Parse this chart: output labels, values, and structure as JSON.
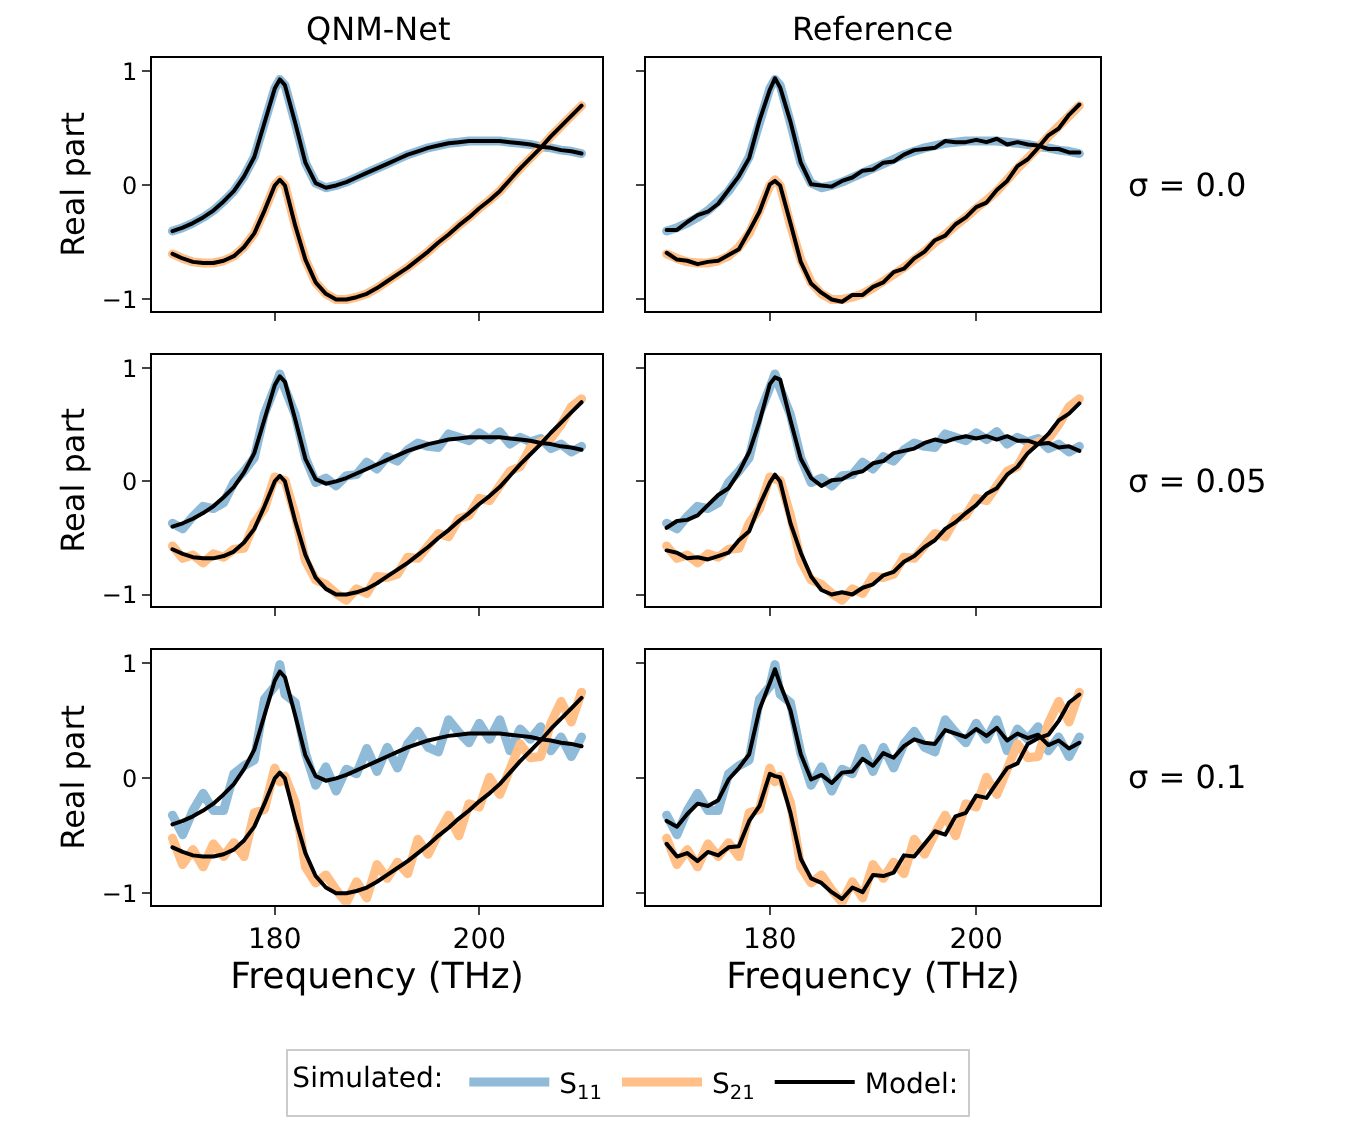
{
  "chart_data": [
    {
      "type": "line",
      "title": "QNM-Net",
      "ylabel": "Real part",
      "legend": "bottom",
      "legend_title": "Simulated:",
      "tick_labels": "y",
      "xlim": [
        168,
        212
      ],
      "ylim": [
        -1.1,
        1.12
      ],
      "xticks": [
        180,
        200
      ],
      "yticks": [
        -1,
        0,
        1
      ],
      "grid": false,
      "x": [
        170,
        171,
        172,
        173,
        174,
        175,
        176,
        177,
        178,
        179,
        180,
        180.5,
        181,
        182,
        183,
        184,
        185,
        186,
        187,
        188,
        189,
        190,
        191,
        192,
        193,
        194,
        195,
        196,
        197,
        198,
        199,
        200,
        201,
        202,
        203,
        204,
        205,
        206,
        207,
        208,
        209,
        210
      ],
      "series": [
        {
          "name": "S$_{11}$",
          "color": "#8fbbd9",
          "values": [
            -0.4,
            -0.37,
            -0.33,
            -0.28,
            -0.22,
            -0.14,
            -0.05,
            0.08,
            0.25,
            0.55,
            0.85,
            0.93,
            0.88,
            0.55,
            0.2,
            0.02,
            -0.02,
            0.0,
            0.03,
            0.07,
            0.11,
            0.15,
            0.19,
            0.23,
            0.27,
            0.3,
            0.33,
            0.35,
            0.37,
            0.38,
            0.39,
            0.39,
            0.39,
            0.39,
            0.38,
            0.37,
            0.36,
            0.34,
            0.33,
            0.31,
            0.3,
            0.28
          ]
        },
        {
          "name": "S$_{21}$",
          "color": "#ffbf86",
          "values": [
            -0.6,
            -0.64,
            -0.67,
            -0.68,
            -0.68,
            -0.66,
            -0.62,
            -0.54,
            -0.42,
            -0.22,
            0.0,
            0.05,
            0.0,
            -0.35,
            -0.65,
            -0.85,
            -0.95,
            -1.0,
            -1.0,
            -0.98,
            -0.95,
            -0.9,
            -0.84,
            -0.78,
            -0.72,
            -0.65,
            -0.58,
            -0.5,
            -0.43,
            -0.35,
            -0.28,
            -0.2,
            -0.13,
            -0.05,
            0.05,
            0.15,
            0.24,
            0.33,
            0.43,
            0.52,
            0.61,
            0.7
          ]
        },
        {
          "name": "Model:",
          "color": "#000000",
          "values": [
            -0.4,
            -0.37,
            -0.33,
            -0.28,
            -0.22,
            -0.14,
            -0.05,
            0.08,
            0.25,
            0.55,
            0.85,
            0.93,
            0.88,
            0.55,
            0.2,
            0.02,
            -0.02,
            0.0,
            0.03,
            0.07,
            0.11,
            0.15,
            0.19,
            0.23,
            0.27,
            0.3,
            0.33,
            0.35,
            0.37,
            0.38,
            0.39,
            0.39,
            0.39,
            0.39,
            0.38,
            0.37,
            0.36,
            0.34,
            0.33,
            0.31,
            0.3,
            0.28
          ]
        },
        {
          "color": "#000000",
          "values": [
            -0.6,
            -0.64,
            -0.67,
            -0.68,
            -0.68,
            -0.66,
            -0.62,
            -0.54,
            -0.42,
            -0.22,
            0.0,
            0.05,
            0.0,
            -0.35,
            -0.65,
            -0.85,
            -0.95,
            -1.0,
            -1.0,
            -0.98,
            -0.95,
            -0.9,
            -0.84,
            -0.78,
            -0.72,
            -0.65,
            -0.58,
            -0.5,
            -0.43,
            -0.35,
            -0.28,
            -0.2,
            -0.13,
            -0.05,
            0.05,
            0.15,
            0.24,
            0.33,
            0.43,
            0.52,
            0.61,
            0.7
          ]
        }
      ]
    },
    {
      "type": "line",
      "title": "Reference",
      "annotations": [
        "σ = 0.0"
      ],
      "tick_labels": false,
      "xlim": [
        168,
        212
      ],
      "ylim": [
        -1.1,
        1.12
      ],
      "xticks": [
        180,
        200
      ],
      "yticks": [
        -1,
        0,
        1
      ],
      "grid": false,
      "x": [
        170,
        171,
        172,
        173,
        174,
        175,
        176,
        177,
        178,
        179,
        180,
        180.5,
        181,
        182,
        183,
        184,
        185,
        186,
        187,
        188,
        189,
        190,
        191,
        192,
        193,
        194,
        195,
        196,
        197,
        198,
        199,
        200,
        201,
        202,
        203,
        204,
        205,
        206,
        207,
        208,
        209,
        210
      ],
      "series": [
        {
          "name": "S$_{11}$",
          "color": "#8fbbd9",
          "values": [
            -0.4,
            -0.37,
            -0.33,
            -0.28,
            -0.22,
            -0.14,
            -0.05,
            0.08,
            0.25,
            0.55,
            0.85,
            0.93,
            0.88,
            0.55,
            0.2,
            0.02,
            -0.02,
            0.0,
            0.03,
            0.07,
            0.11,
            0.15,
            0.19,
            0.23,
            0.27,
            0.3,
            0.33,
            0.35,
            0.37,
            0.38,
            0.39,
            0.39,
            0.39,
            0.39,
            0.38,
            0.37,
            0.36,
            0.34,
            0.33,
            0.31,
            0.3,
            0.28
          ]
        },
        {
          "name": "S$_{21}$",
          "color": "#ffbf86",
          "values": [
            -0.6,
            -0.64,
            -0.67,
            -0.68,
            -0.68,
            -0.66,
            -0.62,
            -0.54,
            -0.42,
            -0.22,
            0.0,
            0.05,
            0.0,
            -0.35,
            -0.65,
            -0.85,
            -0.95,
            -1.0,
            -1.0,
            -0.98,
            -0.95,
            -0.9,
            -0.84,
            -0.78,
            -0.72,
            -0.65,
            -0.58,
            -0.5,
            -0.43,
            -0.35,
            -0.28,
            -0.2,
            -0.13,
            -0.05,
            0.05,
            0.15,
            0.24,
            0.33,
            0.43,
            0.52,
            0.61,
            0.7
          ]
        },
        {
          "name": "Model:",
          "color": "#000000",
          "values": [
            -0.39,
            -0.39,
            -0.32,
            -0.26,
            -0.23,
            -0.16,
            -0.04,
            0.08,
            0.24,
            0.57,
            0.84,
            0.94,
            0.86,
            0.56,
            0.2,
            0.01,
            0.0,
            -0.01,
            0.04,
            0.07,
            0.13,
            0.14,
            0.2,
            0.21,
            0.27,
            0.31,
            0.32,
            0.33,
            0.39,
            0.38,
            0.38,
            0.4,
            0.38,
            0.41,
            0.36,
            0.38,
            0.36,
            0.35,
            0.32,
            0.32,
            0.29,
            0.29
          ]
        },
        {
          "color": "#000000",
          "values": [
            -0.59,
            -0.65,
            -0.66,
            -0.69,
            -0.67,
            -0.66,
            -0.61,
            -0.56,
            -0.4,
            -0.23,
            0.01,
            0.04,
            0.0,
            -0.33,
            -0.67,
            -0.86,
            -0.94,
            -1.0,
            -1.02,
            -0.96,
            -0.96,
            -0.89,
            -0.85,
            -0.76,
            -0.73,
            -0.64,
            -0.58,
            -0.48,
            -0.44,
            -0.34,
            -0.28,
            -0.19,
            -0.15,
            -0.04,
            0.04,
            0.17,
            0.23,
            0.33,
            0.44,
            0.5,
            0.62,
            0.71
          ]
        }
      ]
    },
    {
      "type": "line",
      "ylabel": "Real part",
      "tick_labels": "y",
      "xlim": [
        168,
        212
      ],
      "ylim": [
        -1.1,
        1.12
      ],
      "xticks": [
        180,
        200
      ],
      "yticks": [
        -1,
        0,
        1
      ],
      "grid": false,
      "x": [
        170,
        171,
        172,
        173,
        174,
        175,
        176,
        177,
        178,
        179,
        180,
        180.5,
        181,
        182,
        183,
        184,
        185,
        186,
        187,
        188,
        189,
        190,
        191,
        192,
        193,
        194,
        195,
        196,
        197,
        198,
        199,
        200,
        201,
        202,
        203,
        204,
        205,
        206,
        207,
        208,
        209,
        210
      ],
      "series": [
        {
          "name": "S$_{11}$",
          "color": "#8fbbd9",
          "values": [
            -0.37,
            -0.42,
            -0.31,
            -0.22,
            -0.24,
            -0.19,
            -0.01,
            0.09,
            0.21,
            0.6,
            0.83,
            0.95,
            0.82,
            0.59,
            0.21,
            -0.01,
            0.03,
            -0.04,
            0.05,
            0.06,
            0.17,
            0.11,
            0.22,
            0.18,
            0.28,
            0.34,
            0.31,
            0.3,
            0.42,
            0.39,
            0.36,
            0.43,
            0.37,
            0.44,
            0.33,
            0.39,
            0.35,
            0.38,
            0.29,
            0.33,
            0.26,
            0.31
          ]
        },
        {
          "name": "S$_{21}$",
          "color": "#ffbf86",
          "values": [
            -0.57,
            -0.68,
            -0.65,
            -0.72,
            -0.64,
            -0.67,
            -0.6,
            -0.59,
            -0.37,
            -0.24,
            0.04,
            0.02,
            0.01,
            -0.3,
            -0.7,
            -0.87,
            -0.91,
            -0.99,
            -1.05,
            -0.95,
            -0.99,
            -0.84,
            -0.85,
            -0.82,
            -0.67,
            -0.68,
            -0.57,
            -0.46,
            -0.49,
            -0.33,
            -0.3,
            -0.15,
            -0.17,
            -0.04,
            0.09,
            0.13,
            0.3,
            0.35,
            0.38,
            0.5,
            0.66,
            0.73
          ]
        },
        {
          "name": "Model:",
          "color": "#000000",
          "values": [
            -0.4,
            -0.37,
            -0.33,
            -0.28,
            -0.22,
            -0.14,
            -0.05,
            0.08,
            0.25,
            0.55,
            0.85,
            0.93,
            0.88,
            0.55,
            0.2,
            0.02,
            -0.02,
            0.0,
            0.03,
            0.07,
            0.11,
            0.15,
            0.19,
            0.23,
            0.27,
            0.3,
            0.33,
            0.35,
            0.37,
            0.38,
            0.39,
            0.39,
            0.39,
            0.39,
            0.38,
            0.37,
            0.36,
            0.34,
            0.33,
            0.31,
            0.3,
            0.28
          ]
        },
        {
          "color": "#000000",
          "values": [
            -0.6,
            -0.64,
            -0.67,
            -0.68,
            -0.68,
            -0.66,
            -0.62,
            -0.54,
            -0.42,
            -0.22,
            0.0,
            0.05,
            0.0,
            -0.35,
            -0.65,
            -0.85,
            -0.95,
            -1.0,
            -1.0,
            -0.98,
            -0.95,
            -0.9,
            -0.84,
            -0.78,
            -0.72,
            -0.65,
            -0.58,
            -0.5,
            -0.43,
            -0.35,
            -0.28,
            -0.2,
            -0.13,
            -0.05,
            0.05,
            0.15,
            0.24,
            0.33,
            0.43,
            0.52,
            0.61,
            0.7
          ]
        }
      ]
    },
    {
      "type": "line",
      "annotations": [
        "σ = 0.05"
      ],
      "tick_labels": false,
      "xlim": [
        168,
        212
      ],
      "ylim": [
        -1.1,
        1.12
      ],
      "xticks": [
        180,
        200
      ],
      "yticks": [
        -1,
        0,
        1
      ],
      "grid": false,
      "x": [
        170,
        171,
        172,
        173,
        174,
        175,
        176,
        177,
        178,
        179,
        180,
        180.5,
        181,
        182,
        183,
        184,
        185,
        186,
        187,
        188,
        189,
        190,
        191,
        192,
        193,
        194,
        195,
        196,
        197,
        198,
        199,
        200,
        201,
        202,
        203,
        204,
        205,
        206,
        207,
        208,
        209,
        210
      ],
      "series": [
        {
          "name": "S$_{11}$",
          "color": "#8fbbd9",
          "values": [
            -0.37,
            -0.42,
            -0.31,
            -0.22,
            -0.24,
            -0.19,
            -0.01,
            0.09,
            0.21,
            0.6,
            0.83,
            0.95,
            0.82,
            0.59,
            0.21,
            -0.01,
            0.03,
            -0.04,
            0.05,
            0.06,
            0.17,
            0.11,
            0.22,
            0.18,
            0.28,
            0.34,
            0.31,
            0.3,
            0.42,
            0.39,
            0.36,
            0.43,
            0.37,
            0.44,
            0.33,
            0.39,
            0.35,
            0.38,
            0.29,
            0.33,
            0.26,
            0.31
          ]
        },
        {
          "name": "S$_{21}$",
          "color": "#ffbf86",
          "values": [
            -0.57,
            -0.68,
            -0.65,
            -0.72,
            -0.64,
            -0.67,
            -0.6,
            -0.59,
            -0.37,
            -0.24,
            0.04,
            0.02,
            0.01,
            -0.3,
            -0.7,
            -0.87,
            -0.91,
            -0.99,
            -1.05,
            -0.95,
            -0.99,
            -0.84,
            -0.85,
            -0.82,
            -0.67,
            -0.68,
            -0.57,
            -0.46,
            -0.49,
            -0.33,
            -0.3,
            -0.15,
            -0.17,
            -0.04,
            0.09,
            0.13,
            0.3,
            0.35,
            0.38,
            0.5,
            0.66,
            0.73
          ]
        },
        {
          "name": "Model:",
          "color": "#000000",
          "values": [
            -0.41,
            -0.35,
            -0.34,
            -0.3,
            -0.21,
            -0.12,
            -0.06,
            0.08,
            0.26,
            0.53,
            0.86,
            0.92,
            0.9,
            0.54,
            0.2,
            0.03,
            -0.04,
            0.01,
            0.02,
            0.07,
            0.09,
            0.16,
            0.18,
            0.25,
            0.27,
            0.29,
            0.34,
            0.37,
            0.35,
            0.38,
            0.4,
            0.38,
            0.4,
            0.37,
            0.4,
            0.36,
            0.36,
            0.33,
            0.34,
            0.3,
            0.31,
            0.27
          ]
        },
        {
          "color": "#000000",
          "values": [
            -0.61,
            -0.63,
            -0.68,
            -0.67,
            -0.69,
            -0.66,
            -0.63,
            -0.52,
            -0.44,
            -0.21,
            -0.01,
            0.06,
            0.0,
            -0.37,
            -0.63,
            -0.84,
            -0.96,
            -1.0,
            -0.98,
            -1.0,
            -0.94,
            -0.91,
            -0.83,
            -0.8,
            -0.71,
            -0.66,
            -0.58,
            -0.52,
            -0.42,
            -0.36,
            -0.28,
            -0.21,
            -0.11,
            -0.06,
            0.06,
            0.13,
            0.25,
            0.33,
            0.42,
            0.54,
            0.6,
            0.69
          ]
        }
      ]
    },
    {
      "type": "line",
      "ylabel": "Real part",
      "xlabel": "Frequency (THz)",
      "xlim": [
        168,
        212
      ],
      "ylim": [
        -1.1,
        1.12
      ],
      "xticks": [
        180,
        200
      ],
      "yticks": [
        -1,
        0,
        1
      ],
      "grid": false,
      "x": [
        170,
        171,
        172,
        173,
        174,
        175,
        176,
        177,
        178,
        179,
        180,
        180.5,
        181,
        182,
        183,
        184,
        185,
        186,
        187,
        188,
        189,
        190,
        191,
        192,
        193,
        194,
        195,
        196,
        197,
        198,
        199,
        200,
        201,
        202,
        203,
        204,
        205,
        206,
        207,
        208,
        209,
        210
      ],
      "series": [
        {
          "name": "S$_{11}$",
          "color": "#8fbbd9",
          "values": [
            -0.32,
            -0.49,
            -0.28,
            -0.13,
            -0.28,
            -0.28,
            0.04,
            0.11,
            0.16,
            0.69,
            0.8,
            0.99,
            0.73,
            0.66,
            0.22,
            -0.06,
            0.1,
            -0.11,
            0.08,
            0.04,
            0.26,
            0.06,
            0.27,
            0.09,
            0.3,
            0.41,
            0.27,
            0.23,
            0.51,
            0.4,
            0.31,
            0.48,
            0.34,
            0.51,
            0.24,
            0.43,
            0.34,
            0.45,
            0.24,
            0.36,
            0.19,
            0.36
          ]
        },
        {
          "name": "S$_{21}$",
          "color": "#ffbf86",
          "values": [
            -0.52,
            -0.75,
            -0.62,
            -0.77,
            -0.57,
            -0.68,
            -0.56,
            -0.68,
            -0.3,
            -0.27,
            0.09,
            -0.03,
            0.02,
            -0.21,
            -0.77,
            -0.91,
            -0.84,
            -0.97,
            -1.08,
            -0.9,
            -1.04,
            -0.75,
            -0.87,
            -0.73,
            -0.83,
            -0.53,
            -0.66,
            -0.48,
            -0.32,
            -0.5,
            -0.22,
            -0.25,
            0.01,
            -0.14,
            0.08,
            0.3,
            0.18,
            0.19,
            0.48,
            0.67,
            0.49,
            0.75
          ]
        },
        {
          "name": "Model:",
          "color": "#000000",
          "values": [
            -0.4,
            -0.37,
            -0.33,
            -0.28,
            -0.22,
            -0.14,
            -0.05,
            0.08,
            0.25,
            0.55,
            0.85,
            0.93,
            0.88,
            0.55,
            0.2,
            0.02,
            -0.02,
            0.0,
            0.03,
            0.07,
            0.11,
            0.15,
            0.19,
            0.23,
            0.27,
            0.3,
            0.33,
            0.35,
            0.37,
            0.38,
            0.39,
            0.39,
            0.39,
            0.39,
            0.38,
            0.37,
            0.36,
            0.34,
            0.33,
            0.31,
            0.3,
            0.28
          ]
        },
        {
          "color": "#000000",
          "values": [
            -0.6,
            -0.64,
            -0.67,
            -0.68,
            -0.68,
            -0.66,
            -0.62,
            -0.54,
            -0.42,
            -0.22,
            0.0,
            0.05,
            0.0,
            -0.35,
            -0.65,
            -0.85,
            -0.95,
            -1.0,
            -1.0,
            -0.98,
            -0.95,
            -0.9,
            -0.84,
            -0.78,
            -0.72,
            -0.65,
            -0.58,
            -0.5,
            -0.43,
            -0.35,
            -0.28,
            -0.2,
            -0.13,
            -0.05,
            0.05,
            0.15,
            0.24,
            0.33,
            0.43,
            0.52,
            0.61,
            0.7
          ]
        }
      ]
    },
    {
      "type": "line",
      "xlabel": "Frequency (THz)",
      "annotations": [
        "σ = 0.1"
      ],
      "tick_labels": "x",
      "xlim": [
        168,
        212
      ],
      "ylim": [
        -1.1,
        1.12
      ],
      "xticks": [
        180,
        200
      ],
      "yticks": [
        -1,
        0,
        1
      ],
      "grid": false,
      "x": [
        170,
        171,
        172,
        173,
        174,
        175,
        176,
        177,
        178,
        179,
        180,
        180.5,
        181,
        182,
        183,
        184,
        185,
        186,
        187,
        188,
        189,
        190,
        191,
        192,
        193,
        194,
        195,
        196,
        197,
        198,
        199,
        200,
        201,
        202,
        203,
        204,
        205,
        206,
        207,
        208,
        209,
        210
      ],
      "series": [
        {
          "name": "S$_{11}$",
          "color": "#8fbbd9",
          "values": [
            -0.32,
            -0.49,
            -0.28,
            -0.13,
            -0.28,
            -0.28,
            0.04,
            0.11,
            0.16,
            0.69,
            0.8,
            0.99,
            0.73,
            0.66,
            0.22,
            -0.06,
            0.1,
            -0.11,
            0.08,
            0.04,
            0.26,
            0.06,
            0.27,
            0.09,
            0.3,
            0.41,
            0.27,
            0.23,
            0.51,
            0.4,
            0.31,
            0.48,
            0.34,
            0.51,
            0.24,
            0.43,
            0.34,
            0.45,
            0.24,
            0.36,
            0.19,
            0.36
          ]
        },
        {
          "name": "S$_{21}$",
          "color": "#ffbf86",
          "values": [
            -0.52,
            -0.75,
            -0.62,
            -0.77,
            -0.57,
            -0.68,
            -0.56,
            -0.68,
            -0.3,
            -0.27,
            0.09,
            -0.03,
            0.02,
            -0.21,
            -0.77,
            -0.91,
            -0.84,
            -0.97,
            -1.08,
            -0.9,
            -1.04,
            -0.75,
            -0.87,
            -0.73,
            -0.83,
            -0.53,
            -0.66,
            -0.48,
            -0.32,
            -0.5,
            -0.22,
            -0.25,
            0.01,
            -0.14,
            0.08,
            0.3,
            0.18,
            0.19,
            0.48,
            0.67,
            0.49,
            0.75
          ]
        },
        {
          "name": "Model:",
          "color": "#000000",
          "values": [
            -0.37,
            -0.42,
            -0.31,
            -0.22,
            -0.24,
            -0.19,
            -0.01,
            0.09,
            0.21,
            0.6,
            0.83,
            0.95,
            0.82,
            0.59,
            0.21,
            -0.01,
            0.03,
            -0.04,
            0.05,
            0.06,
            0.17,
            0.11,
            0.22,
            0.18,
            0.28,
            0.34,
            0.31,
            0.3,
            0.42,
            0.39,
            0.36,
            0.43,
            0.37,
            0.44,
            0.33,
            0.39,
            0.35,
            0.38,
            0.29,
            0.33,
            0.26,
            0.31
          ]
        },
        {
          "color": "#000000",
          "values": [
            -0.57,
            -0.68,
            -0.65,
            -0.72,
            -0.64,
            -0.67,
            -0.6,
            -0.59,
            -0.37,
            -0.24,
            0.04,
            0.02,
            0.01,
            -0.3,
            -0.7,
            -0.87,
            -0.91,
            -0.99,
            -1.05,
            -0.95,
            -0.99,
            -0.84,
            -0.85,
            -0.82,
            -0.67,
            -0.68,
            -0.57,
            -0.46,
            -0.49,
            -0.33,
            -0.3,
            -0.15,
            -0.17,
            -0.04,
            0.09,
            0.13,
            0.3,
            0.35,
            0.38,
            0.5,
            0.66,
            0.73
          ]
        }
      ]
    }
  ]
}
